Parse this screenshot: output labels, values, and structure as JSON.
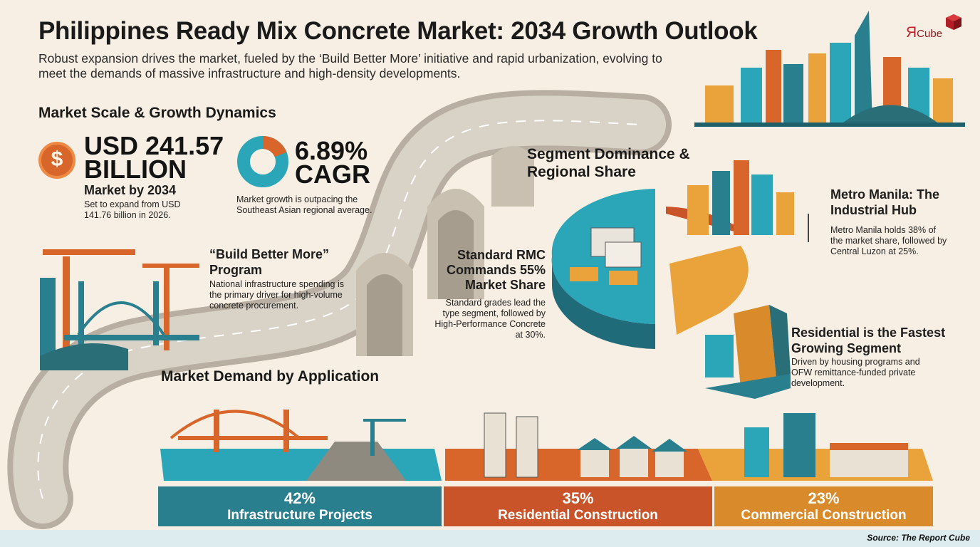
{
  "header": {
    "title": "Philippines Ready Mix Concrete Market: 2034 Growth Outlook",
    "subtitle": "Robust expansion drives the market, fueled by the ‘Build Better More’ initiative and rapid urbanization, evolving to meet the demands of massive infrastructure and high-density developments."
  },
  "logo": {
    "main": "Я",
    "small": "Cube"
  },
  "market_scale": {
    "heading": "Market Scale & Growth Dynamics",
    "coin_symbol": "$",
    "value_line1": "USD 241.57",
    "value_line2": "BILLION",
    "value_caption": "Market by 2034",
    "value_note": "Set to expand from USD 141.76 billion in 2026.",
    "cagr_value": "6.89%",
    "cagr_label": "CAGR",
    "cagr_note": "Market growth is outpacing the Southeast Asian regional average."
  },
  "program": {
    "title": "“Build Better More” Program",
    "body": "National infrastructure spending is the primary driver for high-volume concrete procurement."
  },
  "segment": {
    "heading": "Segment Dominance & Regional Share",
    "standard_title": "Standard RMC Commands 55% Market Share",
    "standard_body": "Standard grades lead the type segment, followed by High-Performance Concrete at 30%.",
    "manila_title": "Metro Manila: The Industrial Hub",
    "manila_body": "Metro Manila holds 38% of the market share, followed by Central Luzon at 25%.",
    "residential_title": "Residential is the Fastest Growing Segment",
    "residential_body": "Driven by housing programs and OFW remittance-funded private development."
  },
  "demand": {
    "heading": "Market Demand by Application",
    "items": [
      {
        "pct": "42%",
        "label": "Infrastructure Projects",
        "color": "#2a7f8f"
      },
      {
        "pct": "35%",
        "label": "Residential Construction",
        "color": "#c9542a"
      },
      {
        "pct": "23%",
        "label": "Commercial Construction",
        "color": "#d98a2b"
      }
    ]
  },
  "colors": {
    "teal": "#2aa6b8",
    "orange": "#d8652a",
    "amber": "#e9a33a",
    "dark_teal": "#1f5f6b",
    "road": "#cfc6b8"
  },
  "source": "Source: The Report Cube"
}
